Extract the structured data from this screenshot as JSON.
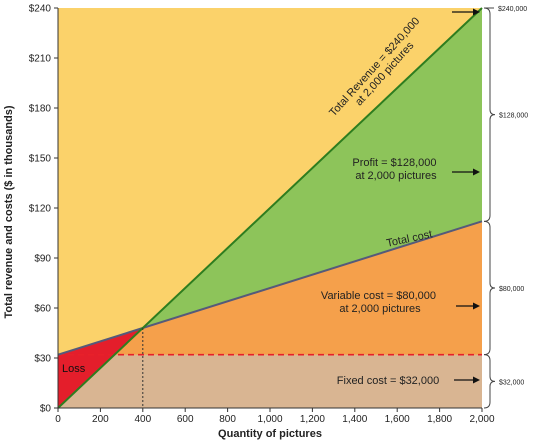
{
  "chart_data": {
    "type": "line",
    "xlabel": "Quantity of pictures",
    "ylabel": "Total revenue and costs ($ in thousands)",
    "xlim": [
      0,
      2000
    ],
    "ylim": [
      0,
      240
    ],
    "x_ticks": [
      "0",
      "200",
      "400",
      "600",
      "800",
      "1,000",
      "1,200",
      "1,400",
      "1,600",
      "1,800",
      "2,000"
    ],
    "y_ticks": [
      "$0",
      "$30",
      "$60",
      "$90",
      "$120",
      "$150",
      "$180",
      "$210",
      "$240"
    ],
    "series": [
      {
        "name": "Total Revenue",
        "x": [
          0,
          2000
        ],
        "y": [
          0,
          240
        ],
        "color": "#2e7d1f"
      },
      {
        "name": "Total cost",
        "x": [
          0,
          2000
        ],
        "y": [
          32,
          112
        ],
        "color": "#555a7a"
      },
      {
        "name": "Fixed cost",
        "x": [
          0,
          2000
        ],
        "y": [
          32,
          32
        ],
        "color": "#e8202a"
      }
    ],
    "break_even": {
      "x": 400,
      "y": 48
    },
    "annotations": {
      "total_revenue": "Total Revenue = $240,000 at 2,000 pictures",
      "total_revenue_line1": "Total Revenue = $240,000",
      "total_revenue_line2": "at 2,000 pictures",
      "profit_line1": "Profit = $128,000",
      "profit_line2": "at 2,000 pictures",
      "total_cost": "Total cost",
      "variable_line1": "Variable cost = $80,000",
      "variable_line2": "at 2,000 pictures",
      "fixed": "Fixed cost = $32,000",
      "loss": "Loss"
    },
    "brackets": [
      {
        "label": "$240,000",
        "from": 240,
        "to": 240
      },
      {
        "label": "$128,000",
        "from": 112,
        "to": 240
      },
      {
        "label": "$80,000",
        "from": 32,
        "to": 112
      },
      {
        "label": "$32,000",
        "from": 0,
        "to": 32
      }
    ],
    "colors": {
      "revenue_region": "#fbd26a",
      "profit_region": "#8dc45a",
      "variable_region": "#f5a04b",
      "fixed_region": "#d9b592",
      "loss_region": "#e41e2b",
      "revenue_line": "#2e7d1f",
      "cost_line": "#555a7a",
      "fixed_line": "#e8202a"
    }
  }
}
